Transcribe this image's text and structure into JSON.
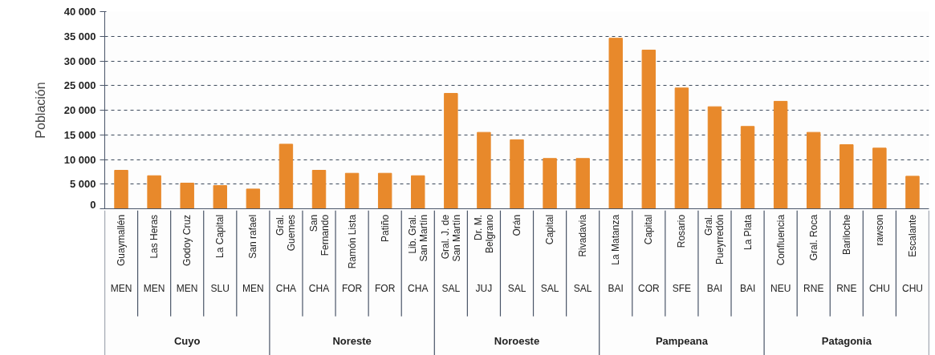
{
  "chart_data": {
    "type": "bar",
    "ylabel": "Población",
    "categories": [
      "Guaymallén",
      "Las Heras",
      "Godoy Cruz",
      "La Capital",
      "San rafael",
      "Gral. Guemes",
      "San Fernando",
      "Ramón Lista",
      "Patiño",
      "Lib. Gral. San Martín",
      "Gral. J. de San Martín",
      "Dr. M. Belgrano",
      "Orán",
      "Capital",
      "Rivadavia",
      "La Matanza",
      "Capital",
      "Rosario",
      "Gral. Pueyrredón",
      "La Plata",
      "Confluencia",
      "Gral. Roca",
      "Bariloche",
      "rawson",
      "Escalante"
    ],
    "values": [
      7800,
      6700,
      5200,
      4700,
      4000,
      13100,
      7800,
      7200,
      7200,
      6700,
      23400,
      15500,
      14000,
      10200,
      10200,
      34600,
      32200,
      24500,
      20700,
      16700,
      21800,
      15500,
      13000,
      12300,
      6600
    ],
    "color": "#e8892b",
    "ylim": [
      0,
      40000
    ],
    "yticks": [
      {
        "value": 0,
        "label": "0"
      },
      {
        "value": 5000,
        "label": "5 000"
      },
      {
        "value": 10000,
        "label": "10 000"
      },
      {
        "value": 15000,
        "label": "15 000"
      },
      {
        "value": 20000,
        "label": "20 000"
      },
      {
        "value": 25000,
        "label": "25 000"
      },
      {
        "value": 30000,
        "label": "30 000"
      },
      {
        "value": 35000,
        "label": "35 000"
      },
      {
        "value": 40000,
        "label": "40 000"
      }
    ],
    "grid": "y",
    "line_style": "dashed",
    "annotations": [
      "MEN",
      "MEN",
      "MEN",
      "SLU",
      "MEN",
      "CHA",
      "CHA",
      "FOR",
      "FOR",
      "CHA",
      "SAL",
      "JUJ",
      "SAL",
      "SAL",
      "SAL",
      "BAI",
      "COR",
      "SFE",
      "BAI",
      "BAI",
      "NEU",
      "RNE",
      "RNE",
      "CHU",
      "CHU",
      "Cuyo",
      "Noreste",
      "Noroeste",
      "Pampeana",
      "Patagonia"
    ]
  }
}
